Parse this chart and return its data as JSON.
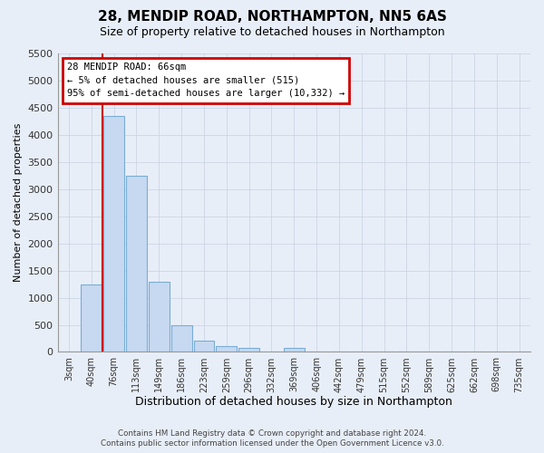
{
  "title": "28, MENDIP ROAD, NORTHAMPTON, NN5 6AS",
  "subtitle": "Size of property relative to detached houses in Northampton",
  "xlabel": "Distribution of detached houses by size in Northampton",
  "ylabel": "Number of detached properties",
  "footer_line1": "Contains HM Land Registry data © Crown copyright and database right 2024.",
  "footer_line2": "Contains public sector information licensed under the Open Government Licence v3.0.",
  "annotation_line1": "28 MENDIP ROAD: 66sqm",
  "annotation_line2": "← 5% of detached houses are smaller (515)",
  "annotation_line3": "95% of semi-detached houses are larger (10,332) →",
  "bar_categories": [
    "3sqm",
    "40sqm",
    "76sqm",
    "113sqm",
    "149sqm",
    "186sqm",
    "223sqm",
    "259sqm",
    "296sqm",
    "332sqm",
    "369sqm",
    "406sqm",
    "442sqm",
    "479sqm",
    "515sqm",
    "552sqm",
    "589sqm",
    "625sqm",
    "662sqm",
    "698sqm",
    "735sqm"
  ],
  "bar_values": [
    0,
    1250,
    4350,
    3250,
    1300,
    500,
    200,
    100,
    80,
    0,
    80,
    0,
    0,
    0,
    0,
    0,
    0,
    0,
    0,
    0,
    0
  ],
  "bar_color": "#c6d9f0",
  "bar_edge_color": "#7aadd4",
  "grid_color": "#c8d0e0",
  "background_color": "#e8eef8",
  "ylim_max": 5500,
  "yticks": [
    0,
    500,
    1000,
    1500,
    2000,
    2500,
    3000,
    3500,
    4000,
    4500,
    5000,
    5500
  ],
  "annotation_box_facecolor": "#ffffff",
  "annotation_box_edgecolor": "#cc0000",
  "vline_color": "#cc0000",
  "vline_x_index": 2,
  "title_fontsize": 11,
  "subtitle_fontsize": 9
}
